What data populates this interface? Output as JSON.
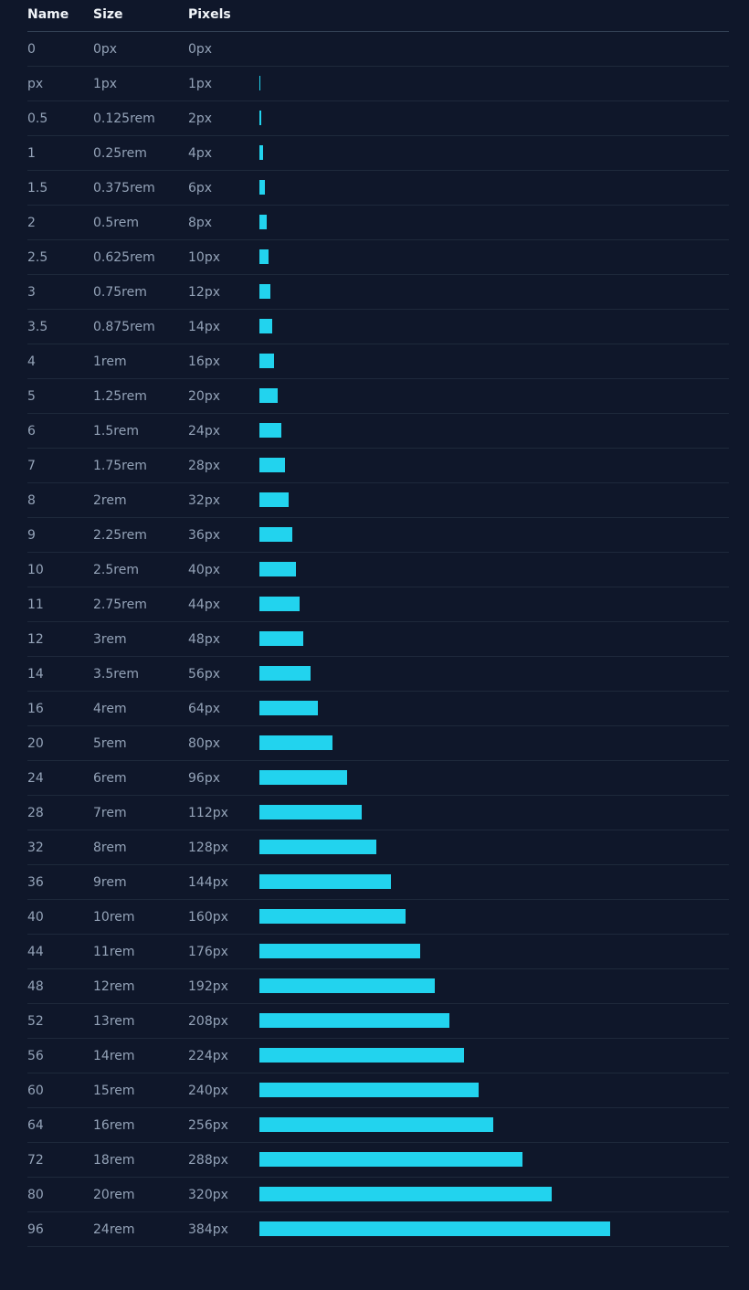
{
  "colors": {
    "background": "#0f172a",
    "bar": "#22d3ee",
    "header_text": "#f1f5f9",
    "cell_text": "#94a3b8"
  },
  "table": {
    "headers": [
      "Name",
      "Size",
      "Pixels"
    ],
    "rows": [
      {
        "name": "0",
        "size": "0px",
        "pixels": "0px",
        "value": 0
      },
      {
        "name": "px",
        "size": "1px",
        "pixels": "1px",
        "value": 1
      },
      {
        "name": "0.5",
        "size": "0.125rem",
        "pixels": "2px",
        "value": 2
      },
      {
        "name": "1",
        "size": "0.25rem",
        "pixels": "4px",
        "value": 4
      },
      {
        "name": "1.5",
        "size": "0.375rem",
        "pixels": "6px",
        "value": 6
      },
      {
        "name": "2",
        "size": "0.5rem",
        "pixels": "8px",
        "value": 8
      },
      {
        "name": "2.5",
        "size": "0.625rem",
        "pixels": "10px",
        "value": 10
      },
      {
        "name": "3",
        "size": "0.75rem",
        "pixels": "12px",
        "value": 12
      },
      {
        "name": "3.5",
        "size": "0.875rem",
        "pixels": "14px",
        "value": 14
      },
      {
        "name": "4",
        "size": "1rem",
        "pixels": "16px",
        "value": 16
      },
      {
        "name": "5",
        "size": "1.25rem",
        "pixels": "20px",
        "value": 20
      },
      {
        "name": "6",
        "size": "1.5rem",
        "pixels": "24px",
        "value": 24
      },
      {
        "name": "7",
        "size": "1.75rem",
        "pixels": "28px",
        "value": 28
      },
      {
        "name": "8",
        "size": "2rem",
        "pixels": "32px",
        "value": 32
      },
      {
        "name": "9",
        "size": "2.25rem",
        "pixels": "36px",
        "value": 36
      },
      {
        "name": "10",
        "size": "2.5rem",
        "pixels": "40px",
        "value": 40
      },
      {
        "name": "11",
        "size": "2.75rem",
        "pixels": "44px",
        "value": 44
      },
      {
        "name": "12",
        "size": "3rem",
        "pixels": "48px",
        "value": 48
      },
      {
        "name": "14",
        "size": "3.5rem",
        "pixels": "56px",
        "value": 56
      },
      {
        "name": "16",
        "size": "4rem",
        "pixels": "64px",
        "value": 64
      },
      {
        "name": "20",
        "size": "5rem",
        "pixels": "80px",
        "value": 80
      },
      {
        "name": "24",
        "size": "6rem",
        "pixels": "96px",
        "value": 96
      },
      {
        "name": "28",
        "size": "7rem",
        "pixels": "112px",
        "value": 112
      },
      {
        "name": "32",
        "size": "8rem",
        "pixels": "128px",
        "value": 128
      },
      {
        "name": "36",
        "size": "9rem",
        "pixels": "144px",
        "value": 144
      },
      {
        "name": "40",
        "size": "10rem",
        "pixels": "160px",
        "value": 160
      },
      {
        "name": "44",
        "size": "11rem",
        "pixels": "176px",
        "value": 176
      },
      {
        "name": "48",
        "size": "12rem",
        "pixels": "192px",
        "value": 192
      },
      {
        "name": "52",
        "size": "13rem",
        "pixels": "208px",
        "value": 208
      },
      {
        "name": "56",
        "size": "14rem",
        "pixels": "224px",
        "value": 224
      },
      {
        "name": "60",
        "size": "15rem",
        "pixels": "240px",
        "value": 240
      },
      {
        "name": "64",
        "size": "16rem",
        "pixels": "256px",
        "value": 256
      },
      {
        "name": "72",
        "size": "18rem",
        "pixels": "288px",
        "value": 288
      },
      {
        "name": "80",
        "size": "20rem",
        "pixels": "320px",
        "value": 320
      },
      {
        "name": "96",
        "size": "24rem",
        "pixels": "384px",
        "value": 384
      }
    ]
  }
}
